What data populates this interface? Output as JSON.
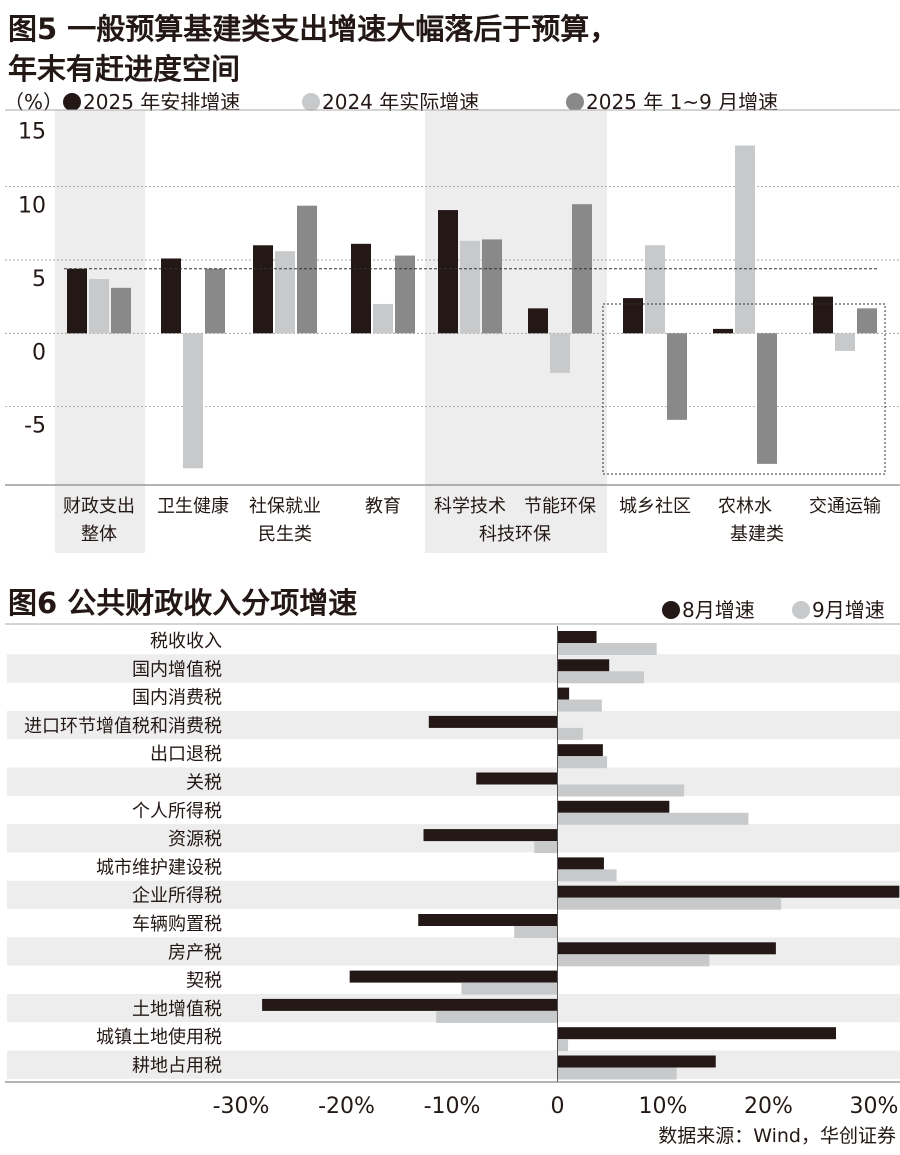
{
  "colors": {
    "black": "#231815",
    "light": "#c8c9ca",
    "dark": "#898989",
    "band": "#ededee"
  },
  "chart_data": [
    {
      "type": "bar",
      "title_line1": "图5 一般预算基建类支出增速大幅落后于预算，",
      "title_line2": "年末有赶进度空间",
      "unit": "（%）",
      "ylim": [
        -10,
        15
      ],
      "yticks": [
        15,
        10,
        5,
        0,
        -5
      ],
      "tick_labels": [
        "15",
        "10",
        "5",
        "0",
        "-5"
      ],
      "categories": [
        "财政支出",
        "卫生健康",
        "社保就业",
        "教育",
        "科学技术",
        "节能环保",
        "城乡社区",
        "农林水",
        "交通运输"
      ],
      "groups": [
        {
          "label": "整体",
          "members": [
            "财政支出"
          ]
        },
        {
          "label": "民生类",
          "members": [
            "卫生健康",
            "社保就业",
            "教育"
          ]
        },
        {
          "label": "科技环保",
          "members": [
            "科学技术",
            "节能环保"
          ]
        },
        {
          "label": "基建类",
          "members": [
            "城乡社区",
            "农林水",
            "交通运输"
          ]
        }
      ],
      "series": [
        {
          "name": "2025 年安排增速",
          "values": [
            4.4,
            5.1,
            6.0,
            6.1,
            8.4,
            1.7,
            2.4,
            0.3,
            2.5
          ]
        },
        {
          "name": "2024 年实际增速",
          "values": [
            3.7,
            -9.2,
            5.6,
            2.0,
            6.3,
            -2.7,
            6.0,
            12.8,
            -1.2
          ]
        },
        {
          "name": "2025 年 1~9 月增速",
          "values": [
            3.1,
            4.4,
            8.7,
            5.3,
            6.4,
            8.8,
            -5.9,
            -8.9,
            1.7
          ]
        }
      ],
      "reference_line": 4.4,
      "grid": true,
      "legend": "top"
    },
    {
      "type": "bar",
      "orientation": "horizontal",
      "title": "图6 公共财政收入分项增速",
      "categories": [
        "税收收入",
        "国内增值税",
        "国内消费税",
        "进口环节增值税和消费税",
        "出口退税",
        "关税",
        "个人所得税",
        "资源税",
        "城市维护建设税",
        "企业所得税",
        "车辆购置税",
        "房产税",
        "契税",
        "土地增值税",
        "城镇土地使用税",
        "耕地占用税"
      ],
      "series": [
        {
          "name": "8月增速",
          "values": [
            3.7,
            4.9,
            1.1,
            -12.2,
            4.3,
            -7.7,
            10.6,
            -12.7,
            4.4,
            32.4,
            -13.2,
            20.7,
            -19.7,
            -28.0,
            26.4,
            15.0
          ]
        },
        {
          "name": "9月增速",
          "values": [
            9.4,
            8.2,
            4.2,
            2.4,
            4.7,
            12.0,
            18.1,
            -2.2,
            5.6,
            21.2,
            -4.1,
            14.4,
            -9.1,
            -11.5,
            1.0,
            11.3
          ]
        }
      ],
      "xlim": [
        -30,
        32
      ],
      "xticks": [
        -30,
        -20,
        -10,
        0,
        10,
        20,
        30
      ],
      "tick_labels": [
        "-30%",
        "-20%",
        "-10%",
        "0",
        "10%",
        "20%",
        "30%"
      ],
      "legend": "top-right",
      "source": "数据来源：Wind，华创证券"
    }
  ]
}
